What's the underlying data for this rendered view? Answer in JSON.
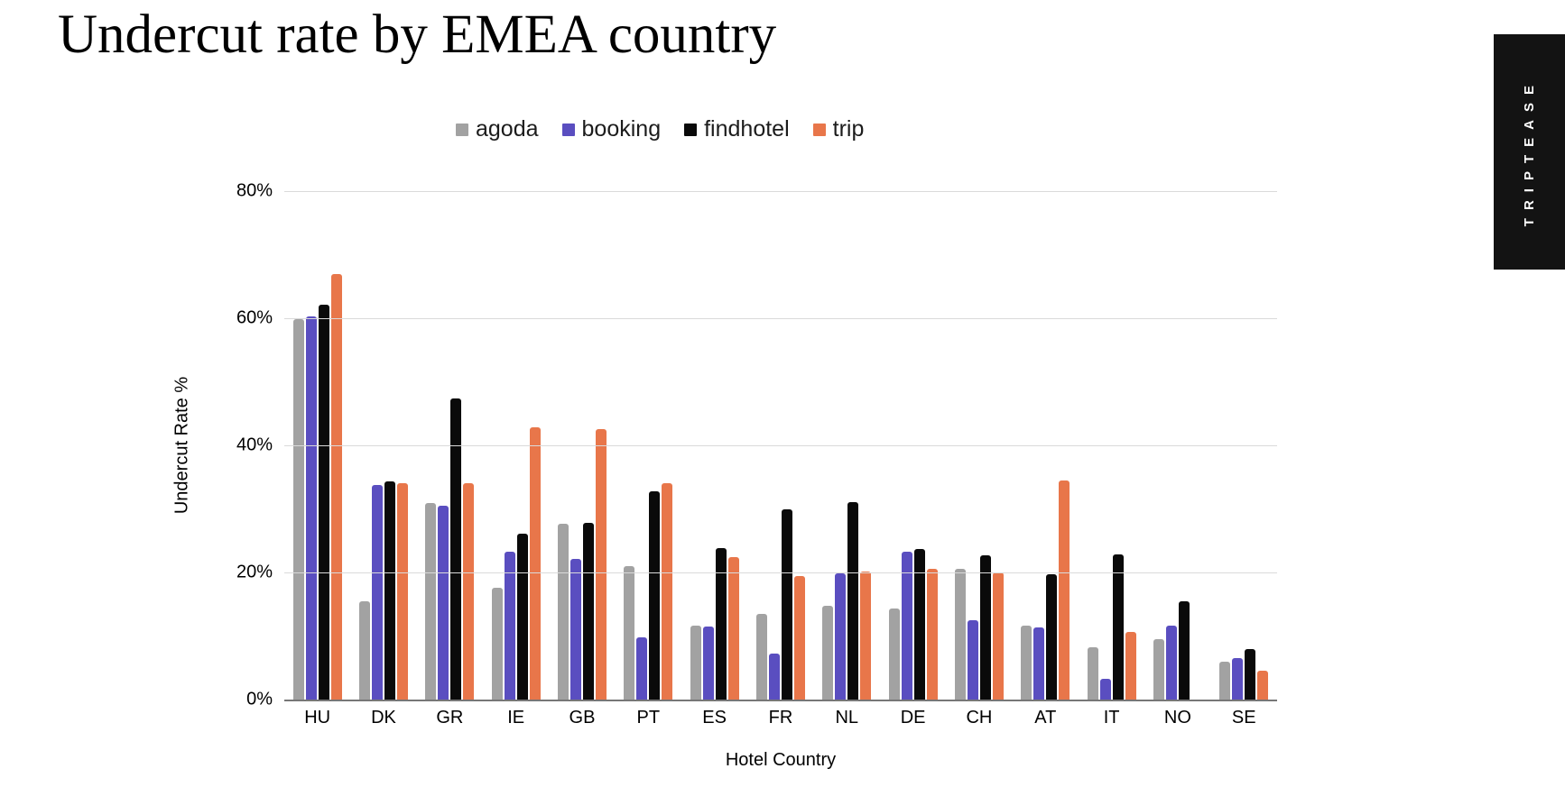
{
  "page": {
    "background": "#ffffff"
  },
  "banner": {
    "text": "TRIPTEASE",
    "bg": "#131313",
    "fg": "#ffffff"
  },
  "chart_data": {
    "type": "bar",
    "title": "Undercut rate by EMEA country",
    "xlabel": "Hotel Country",
    "ylabel": "Undercut Rate %",
    "ylim": [
      0,
      80
    ],
    "grid": true,
    "legend_position": "top-center",
    "yticks": [
      {
        "value": 80,
        "label": "80%"
      },
      {
        "value": 60,
        "label": "60%"
      },
      {
        "value": 40,
        "label": "40%"
      },
      {
        "value": 20,
        "label": "20%"
      },
      {
        "value": 0,
        "label": "0%"
      }
    ],
    "categories": [
      "HU",
      "DK",
      "GR",
      "IE",
      "GB",
      "PT",
      "ES",
      "FR",
      "NL",
      "DE",
      "CH",
      "AT",
      "IT",
      "NO",
      "SE"
    ],
    "series": [
      {
        "name": "agoda",
        "color": "#a2a2a2",
        "values": [
          59.8,
          15.4,
          30.9,
          17.6,
          27.6,
          21.0,
          11.6,
          13.5,
          14.7,
          14.3,
          20.6,
          11.6,
          8.3,
          9.5,
          6.0
        ]
      },
      {
        "name": "booking",
        "color": "#5a4ec0",
        "values": [
          60.3,
          33.7,
          30.5,
          23.3,
          22.2,
          9.8,
          11.5,
          7.3,
          19.9,
          23.3,
          12.5,
          11.4,
          3.3,
          11.7,
          6.5
        ]
      },
      {
        "name": "findhotel",
        "color": "#0a0a0a",
        "values": [
          62.2,
          34.3,
          47.4,
          26.1,
          27.8,
          32.7,
          23.9,
          30.0,
          31.1,
          23.7,
          22.7,
          19.7,
          22.9,
          15.5,
          7.9
        ]
      },
      {
        "name": "trip",
        "color": "#e8764a",
        "values": [
          67.0,
          34.0,
          34.0,
          42.8,
          42.5,
          34.0,
          22.4,
          19.4,
          20.1,
          20.5,
          20.0,
          34.4,
          10.7,
          0,
          4.6
        ]
      }
    ]
  }
}
